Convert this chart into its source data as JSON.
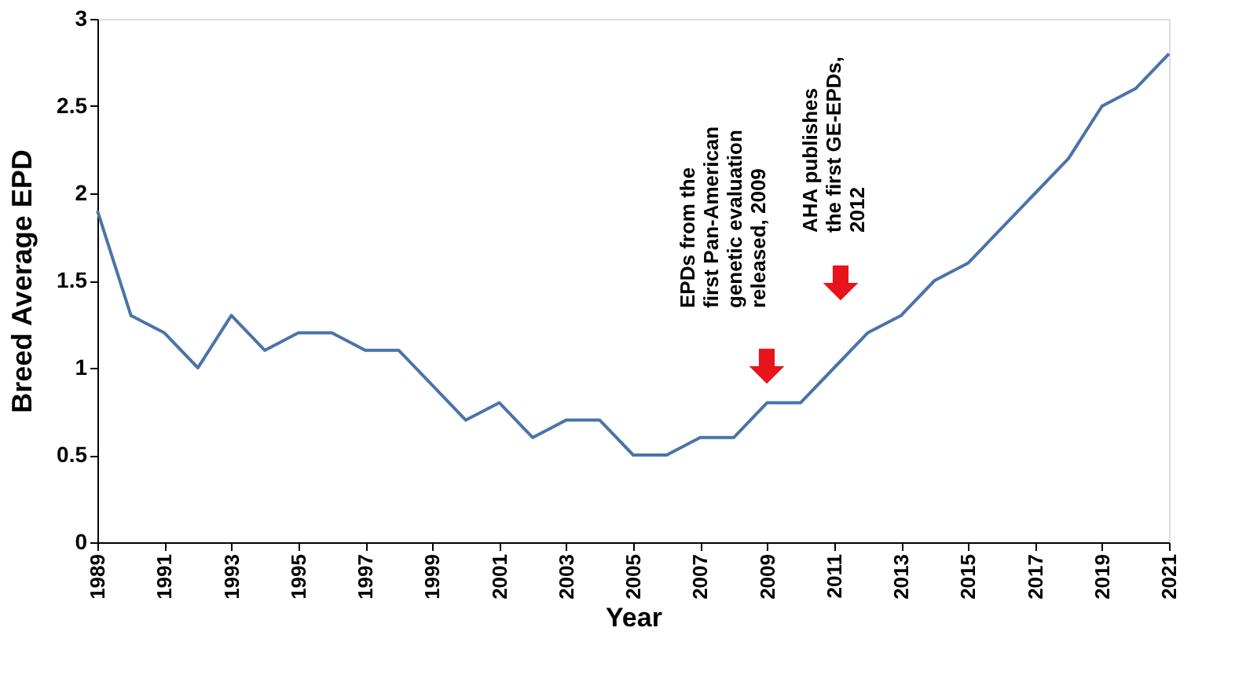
{
  "chart_data": {
    "type": "line",
    "xlabel": "Year",
    "ylabel": "Breed Average EPD",
    "x": [
      1989,
      1990,
      1991,
      1992,
      1993,
      1994,
      1995,
      1996,
      1997,
      1998,
      1999,
      2000,
      2001,
      2002,
      2003,
      2004,
      2005,
      2006,
      2007,
      2008,
      2009,
      2010,
      2011,
      2012,
      2013,
      2014,
      2015,
      2016,
      2017,
      2018,
      2019,
      2020,
      2021
    ],
    "series": [
      {
        "color": "#4a74a8",
        "values": [
          1.9,
          1.3,
          1.2,
          1.0,
          1.3,
          1.1,
          1.2,
          1.2,
          1.1,
          1.1,
          0.9,
          0.7,
          0.8,
          0.6,
          0.7,
          0.7,
          0.5,
          0.5,
          0.6,
          0.6,
          0.8,
          0.8,
          1.0,
          1.2,
          1.3,
          1.5,
          1.6,
          1.8,
          2.0,
          2.2,
          2.5,
          2.6,
          2.8
        ]
      }
    ],
    "xlim": [
      1989,
      2021
    ],
    "xticks": [
      1989,
      1991,
      1993,
      1995,
      1997,
      1999,
      2001,
      2003,
      2005,
      2007,
      2009,
      2011,
      2013,
      2015,
      2017,
      2019,
      2021
    ],
    "ylim": [
      0,
      3
    ],
    "yticks": [
      0,
      0.5,
      1,
      1.5,
      2,
      2.5,
      3
    ],
    "grid": false,
    "marker": "none",
    "line_style": "solid",
    "annotations": [
      "EPDs from the\nfirst Pan-American\ngenetic evaluation\nreleased, 2009",
      "AHA publishes\nthe first GE-EPDs,\n2012"
    ]
  }
}
